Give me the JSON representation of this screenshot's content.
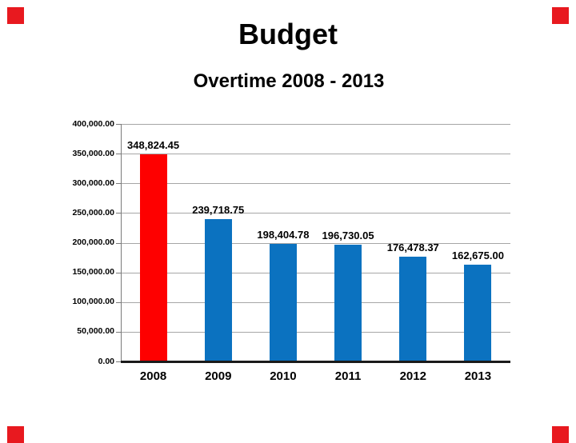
{
  "slide": {
    "title": "Budget"
  },
  "chart": {
    "title": "Overtime 2008 - 2013"
  },
  "colors": {
    "accent_square": "#e8191f",
    "bar_highlight": "#fe0000",
    "bar_default": "#0b72c0",
    "gridline": "#a6a6a6",
    "axis": "#1a1a1a",
    "text": "#000000"
  },
  "chart_data": {
    "type": "bar",
    "title": "Overtime 2008 - 2013",
    "categories": [
      "2008",
      "2009",
      "2010",
      "2011",
      "2012",
      "2013"
    ],
    "values": [
      348824.45,
      239718.75,
      198404.78,
      196730.05,
      176478.37,
      162675.0
    ],
    "value_labels": [
      "348,824.45",
      "239,718.75",
      "198,404.78",
      "196,730.05",
      "176,478.37",
      "162,675.00"
    ],
    "bar_colors": [
      "#fe0000",
      "#0b72c0",
      "#0b72c0",
      "#0b72c0",
      "#0b72c0",
      "#0b72c0"
    ],
    "xlabel": "",
    "ylabel": "",
    "ylim": [
      0,
      400000
    ],
    "yticks": [
      {
        "value": 400000,
        "label": "400,000.00"
      },
      {
        "value": 350000,
        "label": "350,000.00"
      },
      {
        "value": 300000,
        "label": "300,000.00"
      },
      {
        "value": 250000,
        "label": "250,000.00"
      },
      {
        "value": 200000,
        "label": "200,000.00"
      },
      {
        "value": 150000,
        "label": "150,000.00"
      },
      {
        "value": 100000,
        "label": "100,000.00"
      },
      {
        "value": 50000,
        "label": "50,000.00"
      },
      {
        "value": 0,
        "label": "0.00"
      }
    ],
    "grid": true,
    "legend": false
  }
}
